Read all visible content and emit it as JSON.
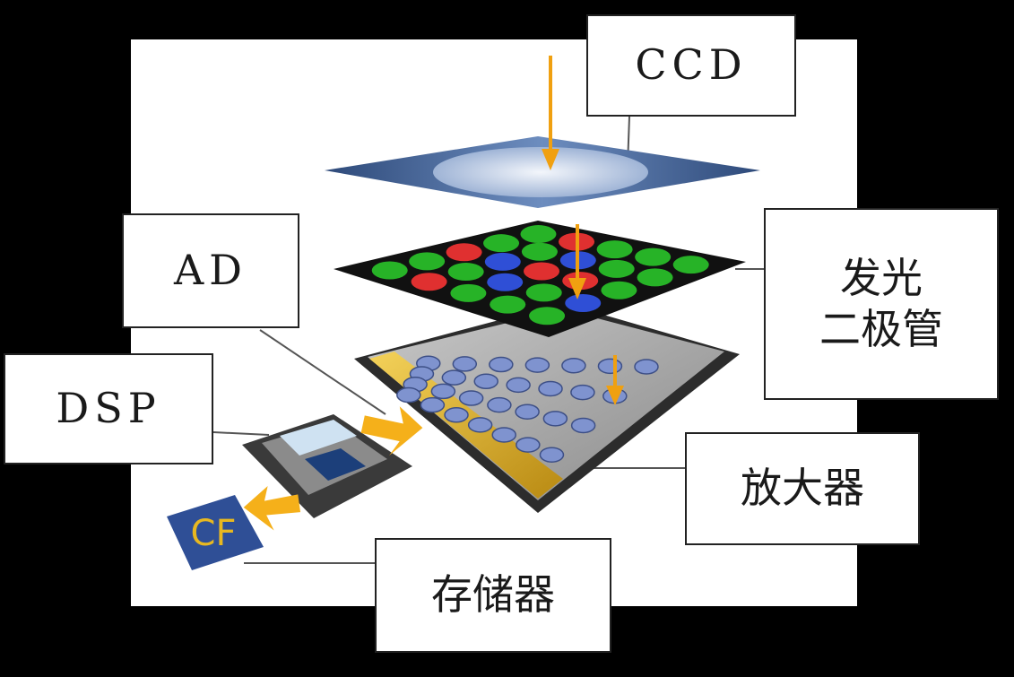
{
  "labels": {
    "ccd": "CCD",
    "led_line1": "发光",
    "led_line2": "二极管",
    "ad": "AD",
    "dsp": "DSP",
    "amplifier": "放大器",
    "memory": "存储器",
    "cf_card": "CF"
  },
  "colors": {
    "background": "#000000",
    "panel": "#ffffff",
    "ccd_plate": "#3f5a8c",
    "led_green": "#27b327",
    "led_red": "#e03030",
    "led_blue": "#2f4fd6",
    "arrow": "#f0a010"
  },
  "led_grid": [
    [
      "green",
      "green",
      "red",
      "green",
      "green"
    ],
    [
      "red",
      "green",
      "blue",
      "green",
      "red"
    ],
    [
      "green",
      "blue",
      "red",
      "blue",
      "green"
    ],
    [
      "green",
      "green",
      "red",
      "green",
      "green"
    ],
    [
      "green",
      "blue",
      "green",
      "green",
      "green"
    ]
  ]
}
